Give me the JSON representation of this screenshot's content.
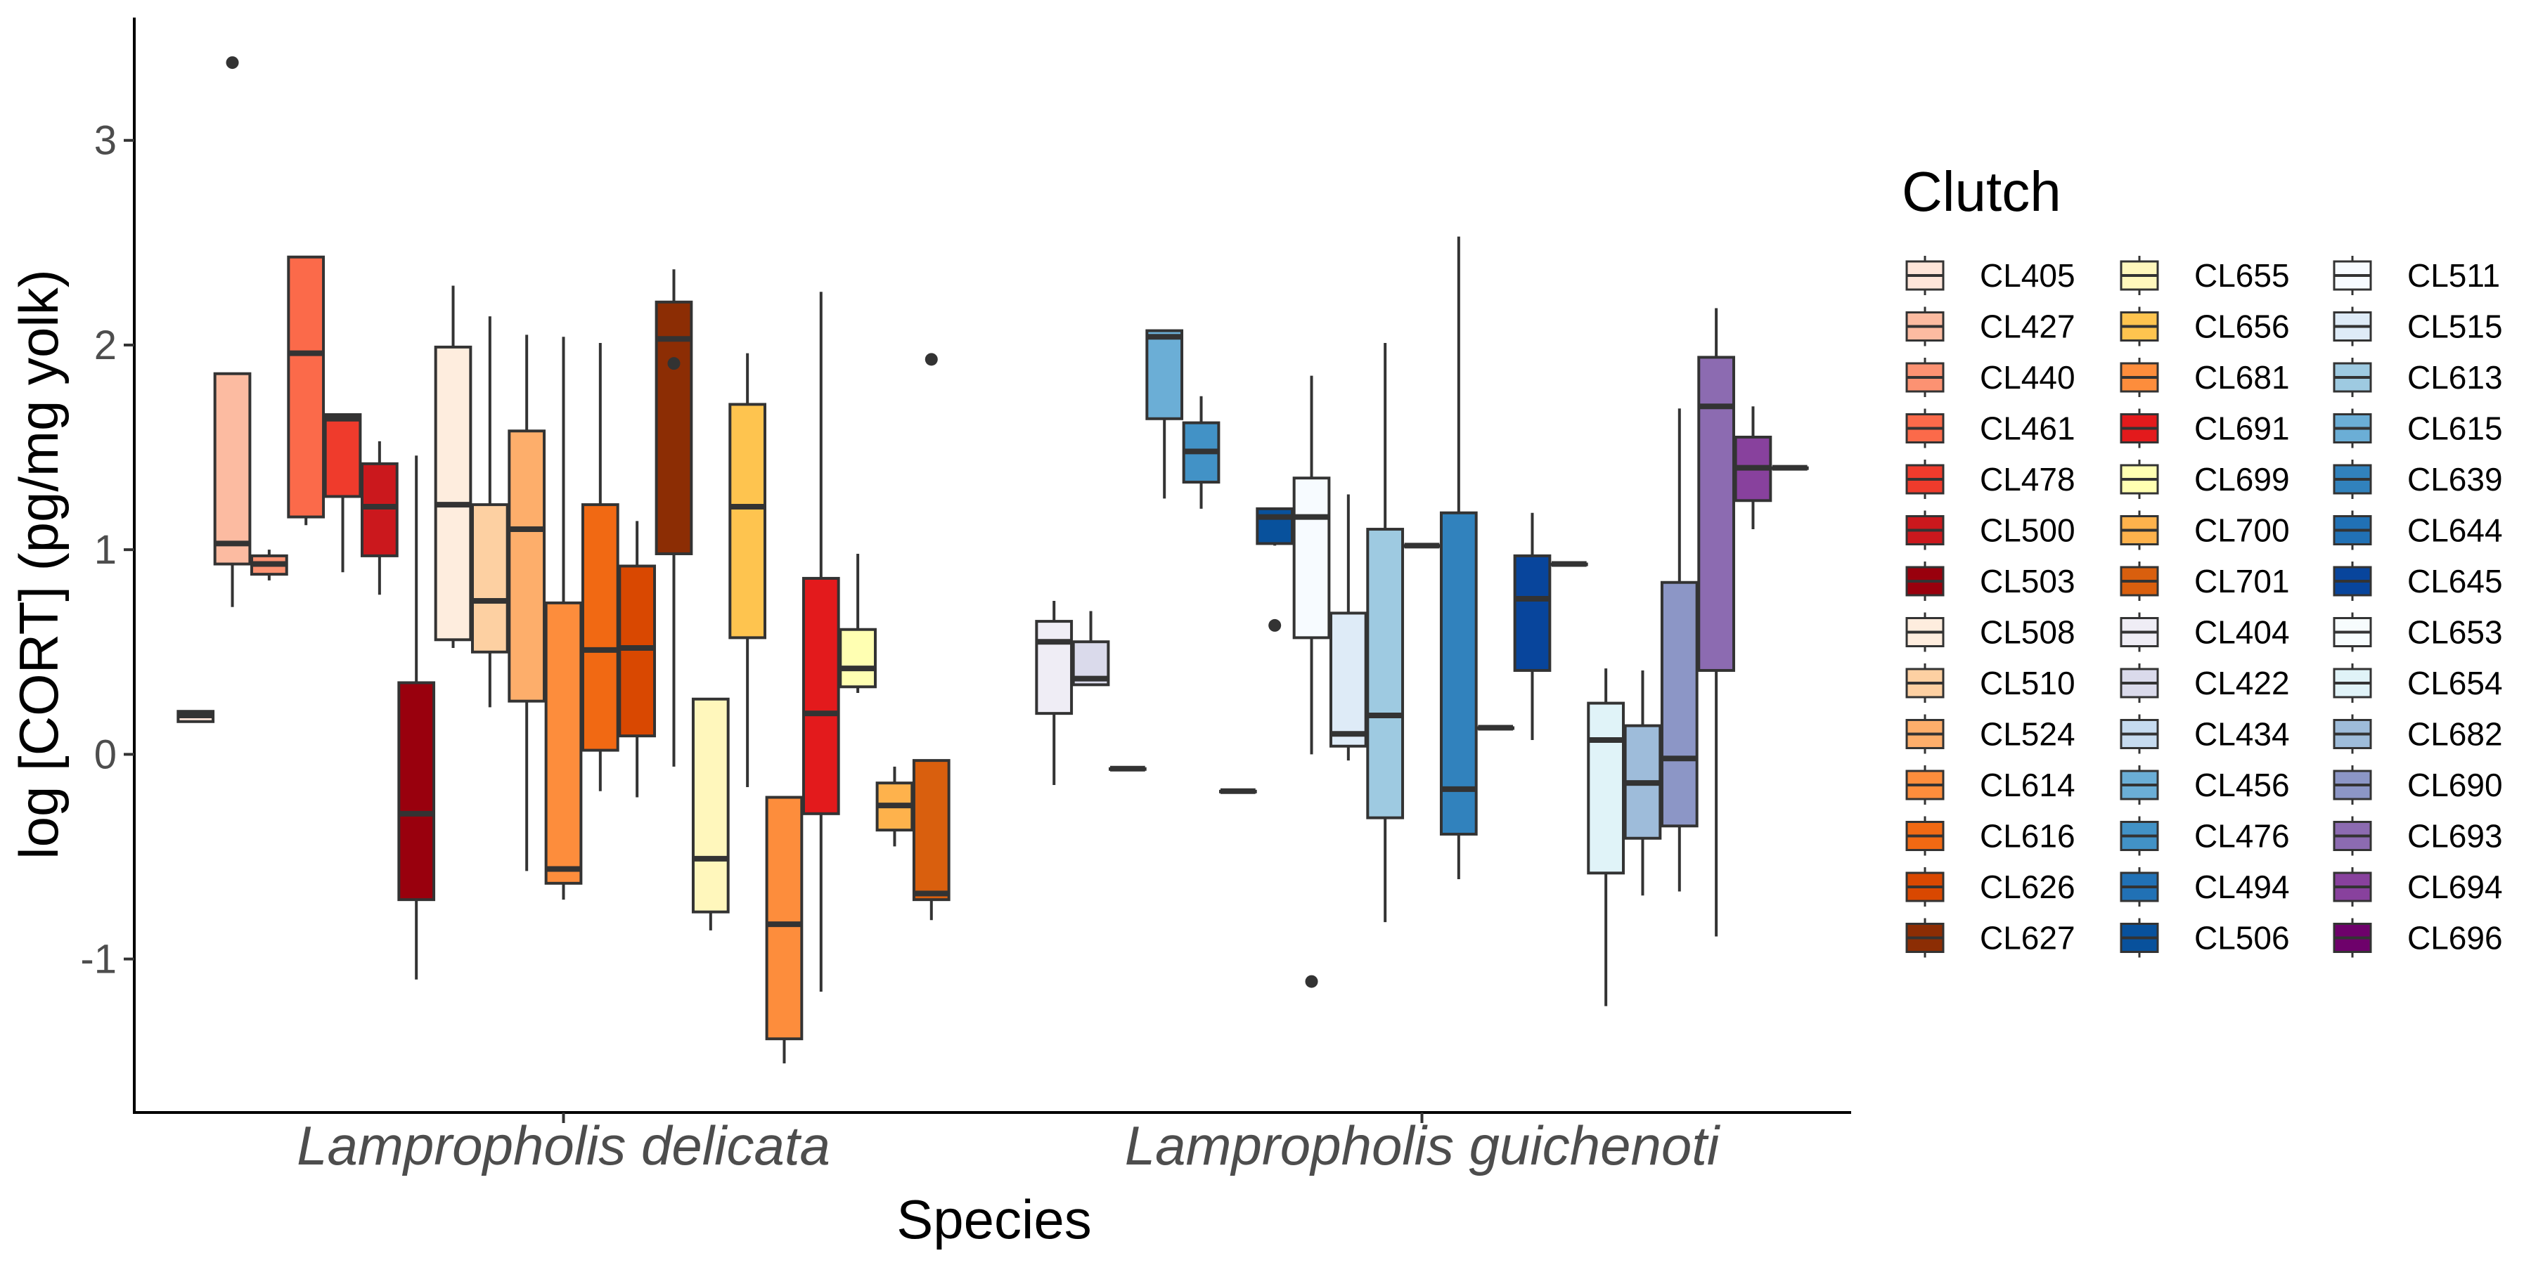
{
  "chart_data": {
    "type": "boxplot",
    "xlabel": "Species",
    "ylabel": "log [CORT] (pg/mg yolk)",
    "ylim": [
      -1.75,
      3.6
    ],
    "yticks": [
      -1,
      0,
      1,
      2,
      3
    ],
    "grid": false,
    "legend_position": "right",
    "legend_title": "Clutch",
    "categories": [
      "Lampropholis delicata",
      "Lampropholis guichenoti"
    ],
    "series": [
      {
        "name": "CL405",
        "color": "#FEE5D9",
        "category": "Lampropholis delicata",
        "q1": 0.16,
        "median": 0.19,
        "q3": 0.21,
        "whisker_low": 0.16,
        "whisker_high": 0.21,
        "outliers": []
      },
      {
        "name": "CL427",
        "color": "#FCBBA1",
        "category": "Lampropholis delicata",
        "q1": 0.93,
        "median": 1.03,
        "q3": 1.86,
        "whisker_low": 0.72,
        "whisker_high": 1.86,
        "outliers": [
          3.38
        ]
      },
      {
        "name": "CL440",
        "color": "#FC9272",
        "category": "Lampropholis delicata",
        "q1": 0.88,
        "median": 0.93,
        "q3": 0.97,
        "whisker_low": 0.85,
        "whisker_high": 1.0,
        "outliers": []
      },
      {
        "name": "CL461",
        "color": "#FB6A4A",
        "category": "Lampropholis delicata",
        "q1": 1.16,
        "median": 1.96,
        "q3": 2.43,
        "whisker_low": 1.12,
        "whisker_high": 2.43,
        "outliers": []
      },
      {
        "name": "CL478",
        "color": "#EF3B2C",
        "category": "Lampropholis delicata",
        "q1": 1.26,
        "median": 1.64,
        "q3": 1.66,
        "whisker_low": 0.89,
        "whisker_high": 1.66,
        "outliers": []
      },
      {
        "name": "CL500",
        "color": "#CB181D",
        "category": "Lampropholis delicata",
        "q1": 0.97,
        "median": 1.21,
        "q3": 1.42,
        "whisker_low": 0.78,
        "whisker_high": 1.53,
        "outliers": []
      },
      {
        "name": "CL503",
        "color": "#99000D",
        "category": "Lampropholis delicata",
        "q1": -0.71,
        "median": -0.29,
        "q3": 0.35,
        "whisker_low": -1.1,
        "whisker_high": 1.46,
        "outliers": []
      },
      {
        "name": "CL508",
        "color": "#FEEDDE",
        "category": "Lampropholis delicata",
        "q1": 0.56,
        "median": 1.22,
        "q3": 1.99,
        "whisker_low": 0.52,
        "whisker_high": 2.29,
        "outliers": []
      },
      {
        "name": "CL510",
        "color": "#FDD0A2",
        "category": "Lampropholis delicata",
        "q1": 0.5,
        "median": 0.75,
        "q3": 1.22,
        "whisker_low": 0.23,
        "whisker_high": 2.14,
        "outliers": []
      },
      {
        "name": "CL524",
        "color": "#FDAE6B",
        "category": "Lampropholis delicata",
        "q1": 0.26,
        "median": 1.1,
        "q3": 1.58,
        "whisker_low": -0.57,
        "whisker_high": 2.05,
        "outliers": []
      },
      {
        "name": "CL614",
        "color": "#FD8D3C",
        "category": "Lampropholis delicata",
        "q1": -0.63,
        "median": -0.56,
        "q3": 0.74,
        "whisker_low": -0.71,
        "whisker_high": 2.04,
        "outliers": []
      },
      {
        "name": "CL616",
        "color": "#F16913",
        "category": "Lampropholis delicata",
        "q1": 0.02,
        "median": 0.51,
        "q3": 1.22,
        "whisker_low": -0.18,
        "whisker_high": 2.01,
        "outliers": []
      },
      {
        "name": "CL626",
        "color": "#D94801",
        "category": "Lampropholis delicata",
        "q1": 0.09,
        "median": 0.52,
        "q3": 0.92,
        "whisker_low": -0.21,
        "whisker_high": 1.14,
        "outliers": []
      },
      {
        "name": "CL627",
        "color": "#8C2D04",
        "category": "Lampropholis delicata",
        "q1": 0.98,
        "median": 2.03,
        "q3": 2.21,
        "whisker_low": -0.06,
        "whisker_high": 2.37,
        "outliers": [
          1.91
        ]
      },
      {
        "name": "CL655",
        "color": "#FFF7BC",
        "category": "Lampropholis delicata",
        "q1": -0.77,
        "median": -0.51,
        "q3": 0.27,
        "whisker_low": -0.86,
        "whisker_high": 0.27,
        "outliers": []
      },
      {
        "name": "CL656",
        "color": "#FEC44F",
        "category": "Lampropholis delicata",
        "q1": 0.57,
        "median": 1.21,
        "q3": 1.71,
        "whisker_low": -0.16,
        "whisker_high": 1.96,
        "outliers": []
      },
      {
        "name": "CL681",
        "color": "#FD8D3C",
        "category": "Lampropholis delicata",
        "q1": -1.39,
        "median": -0.83,
        "q3": -0.21,
        "whisker_low": -1.51,
        "whisker_high": -0.21,
        "outliers": []
      },
      {
        "name": "CL691",
        "color": "#E31A1C",
        "category": "Lampropholis delicata",
        "q1": -0.29,
        "median": 0.2,
        "q3": 0.86,
        "whisker_low": -1.16,
        "whisker_high": 2.26,
        "outliers": []
      },
      {
        "name": "CL699",
        "color": "#FFFFB2",
        "category": "Lampropholis delicata",
        "q1": 0.33,
        "median": 0.42,
        "q3": 0.61,
        "whisker_low": 0.3,
        "whisker_high": 0.98,
        "outliers": []
      },
      {
        "name": "CL700",
        "color": "#FEB24C",
        "category": "Lampropholis delicata",
        "q1": -0.37,
        "median": -0.25,
        "q3": -0.14,
        "whisker_low": -0.45,
        "whisker_high": -0.06,
        "outliers": []
      },
      {
        "name": "CL701",
        "color": "#D95F0E",
        "category": "Lampropholis delicata",
        "q1": -0.71,
        "median": -0.68,
        "q3": -0.03,
        "whisker_low": -0.81,
        "whisker_high": -0.03,
        "outliers": [
          1.93
        ]
      },
      {
        "name": "CL404",
        "color": "#EFEDF5",
        "category": "Lampropholis guichenoti",
        "q1": 0.2,
        "median": 0.55,
        "q3": 0.65,
        "whisker_low": -0.15,
        "whisker_high": 0.75,
        "outliers": []
      },
      {
        "name": "CL422",
        "color": "#DADAEB",
        "category": "Lampropholis guichenoti",
        "q1": 0.34,
        "median": 0.37,
        "q3": 0.55,
        "whisker_low": 0.34,
        "whisker_high": 0.7,
        "outliers": []
      },
      {
        "name": "CL434",
        "color": "#C6DBEF",
        "category": "Lampropholis guichenoti",
        "q1": -0.07,
        "median": -0.07,
        "q3": -0.07,
        "whisker_low": -0.07,
        "whisker_high": -0.07,
        "outliers": []
      },
      {
        "name": "CL456",
        "color": "#6BAED6",
        "category": "Lampropholis guichenoti",
        "q1": 1.64,
        "median": 2.04,
        "q3": 2.07,
        "whisker_low": 1.25,
        "whisker_high": 2.07,
        "outliers": []
      },
      {
        "name": "CL476",
        "color": "#4292C6",
        "category": "Lampropholis guichenoti",
        "q1": 1.33,
        "median": 1.48,
        "q3": 1.62,
        "whisker_low": 1.2,
        "whisker_high": 1.75,
        "outliers": []
      },
      {
        "name": "CL494",
        "color": "#2171B5",
        "category": "Lampropholis guichenoti",
        "q1": -0.18,
        "median": -0.18,
        "q3": -0.18,
        "whisker_low": -0.18,
        "whisker_high": -0.18,
        "outliers": []
      },
      {
        "name": "CL506",
        "color": "#08519C",
        "category": "Lampropholis guichenoti",
        "q1": 1.03,
        "median": 1.16,
        "q3": 1.2,
        "whisker_low": 1.02,
        "whisker_high": 1.2,
        "outliers": [
          0.63
        ]
      },
      {
        "name": "CL511",
        "color": "#F7FBFF",
        "category": "Lampropholis guichenoti",
        "q1": 0.57,
        "median": 1.16,
        "q3": 1.35,
        "whisker_low": 0.0,
        "whisker_high": 1.85,
        "outliers": [
          -1.11
        ]
      },
      {
        "name": "CL515",
        "color": "#DEEBF7",
        "category": "Lampropholis guichenoti",
        "q1": 0.04,
        "median": 0.1,
        "q3": 0.69,
        "whisker_low": -0.03,
        "whisker_high": 1.27,
        "outliers": []
      },
      {
        "name": "CL613",
        "color": "#9ECAE1",
        "category": "Lampropholis guichenoti",
        "q1": -0.31,
        "median": 0.19,
        "q3": 1.1,
        "whisker_low": -0.82,
        "whisker_high": 2.01,
        "outliers": []
      },
      {
        "name": "CL615",
        "color": "#6BAED6",
        "category": "Lampropholis guichenoti",
        "q1": 1.02,
        "median": 1.02,
        "q3": 1.02,
        "whisker_low": 1.02,
        "whisker_high": 1.02,
        "outliers": []
      },
      {
        "name": "CL639",
        "color": "#3182BD",
        "category": "Lampropholis guichenoti",
        "q1": -0.39,
        "median": -0.17,
        "q3": 1.18,
        "whisker_low": -0.61,
        "whisker_high": 2.53,
        "outliers": []
      },
      {
        "name": "CL644",
        "color": "#2171B5",
        "category": "Lampropholis guichenoti",
        "q1": 0.13,
        "median": 0.13,
        "q3": 0.13,
        "whisker_low": 0.13,
        "whisker_high": 0.13,
        "outliers": []
      },
      {
        "name": "CL645",
        "color": "#08459C",
        "category": "Lampropholis guichenoti",
        "q1": 0.41,
        "median": 0.76,
        "q3": 0.97,
        "whisker_low": 0.07,
        "whisker_high": 1.18,
        "outliers": []
      },
      {
        "name": "CL653",
        "color": "#F7FCFD",
        "category": "Lampropholis guichenoti",
        "q1": 0.93,
        "median": 0.93,
        "q3": 0.93,
        "whisker_low": 0.93,
        "whisker_high": 0.93,
        "outliers": []
      },
      {
        "name": "CL654",
        "color": "#E0F3F8",
        "category": "Lampropholis guichenoti",
        "q1": -0.58,
        "median": 0.07,
        "q3": 0.25,
        "whisker_low": -1.23,
        "whisker_high": 0.42,
        "outliers": []
      },
      {
        "name": "CL682",
        "color": "#9EBCDA",
        "category": "Lampropholis guichenoti",
        "q1": -0.41,
        "median": -0.14,
        "q3": 0.14,
        "whisker_low": -0.69,
        "whisker_high": 0.41,
        "outliers": []
      },
      {
        "name": "CL690",
        "color": "#8C96C6",
        "category": "Lampropholis guichenoti",
        "q1": -0.35,
        "median": -0.02,
        "q3": 0.84,
        "whisker_low": -0.67,
        "whisker_high": 1.69,
        "outliers": []
      },
      {
        "name": "CL693",
        "color": "#8C6BB1",
        "category": "Lampropholis guichenoti",
        "q1": 0.41,
        "median": 1.7,
        "q3": 1.94,
        "whisker_low": -0.89,
        "whisker_high": 2.18,
        "outliers": []
      },
      {
        "name": "CL694",
        "color": "#88419D",
        "category": "Lampropholis guichenoti",
        "q1": 1.24,
        "median": 1.4,
        "q3": 1.55,
        "whisker_low": 1.1,
        "whisker_high": 1.7,
        "outliers": []
      },
      {
        "name": "CL696",
        "color": "#6E016B",
        "category": "Lampropholis guichenoti",
        "q1": 1.4,
        "median": 1.4,
        "q3": 1.4,
        "whisker_low": 1.4,
        "whisker_high": 1.4,
        "outliers": []
      }
    ],
    "legend_order": [
      "CL405",
      "CL427",
      "CL440",
      "CL461",
      "CL478",
      "CL500",
      "CL503",
      "CL508",
      "CL510",
      "CL524",
      "CL614",
      "CL616",
      "CL626",
      "CL627",
      "CL655",
      "CL656",
      "CL681",
      "CL691",
      "CL699",
      "CL700",
      "CL701",
      "CL404",
      "CL422",
      "CL434",
      "CL456",
      "CL476",
      "CL494",
      "CL506",
      "CL511",
      "CL515",
      "CL613",
      "CL615",
      "CL639",
      "CL644",
      "CL645",
      "CL653",
      "CL654",
      "CL682",
      "CL690",
      "CL693",
      "CL694",
      "CL696"
    ]
  }
}
